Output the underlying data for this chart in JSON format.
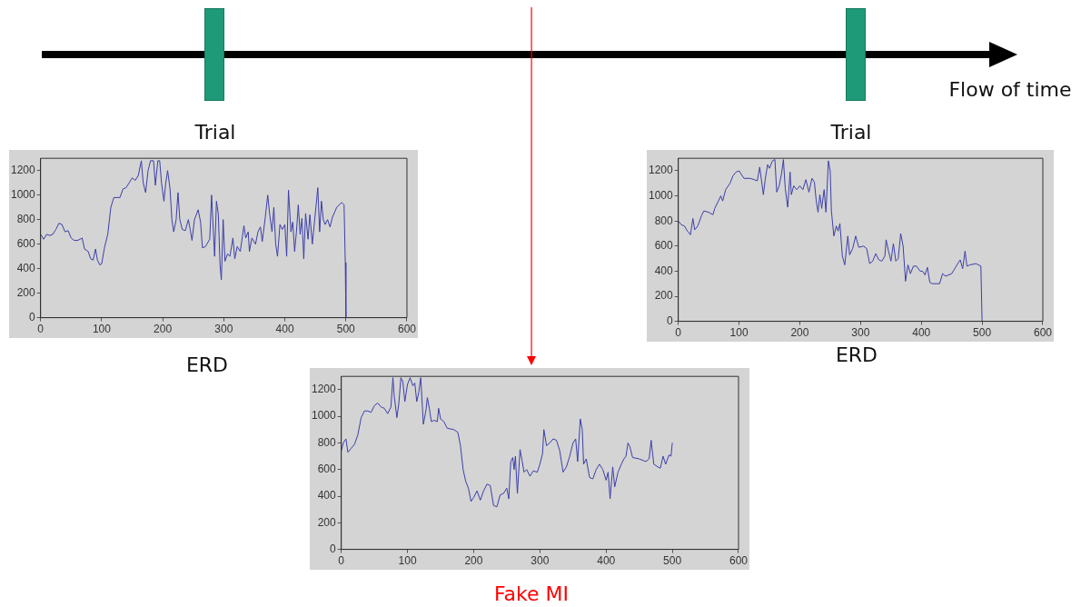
{
  "chart_data": [
    {
      "type": "other",
      "annotations": [
        "Trial",
        "Trial",
        "Flow of time"
      ]
    },
    {
      "type": "line",
      "xlabel": "ERD",
      "xlim": [
        0,
        600
      ],
      "xticks": [
        0,
        100,
        200,
        300,
        400,
        500,
        600
      ],
      "ylim": [
        0,
        1300
      ],
      "yticks": [
        0,
        200,
        400,
        600,
        800,
        1000,
        1200
      ],
      "grid": false,
      "legend": false,
      "x": [
        0,
        5,
        10,
        15,
        20,
        25,
        30,
        35,
        40,
        45,
        50,
        55,
        60,
        65,
        68,
        72,
        78,
        82,
        86,
        90,
        93,
        97,
        100,
        105,
        110,
        115,
        120,
        130,
        135,
        140,
        145,
        150,
        155,
        160,
        165,
        168,
        172,
        176,
        180,
        185,
        188,
        192,
        195,
        198,
        202,
        205,
        208,
        212,
        215,
        218,
        222,
        225,
        228,
        232,
        237,
        242,
        245,
        248,
        252,
        258,
        262,
        265,
        270,
        277,
        280,
        283,
        285,
        288,
        291,
        294,
        296,
        299,
        302,
        306,
        310,
        315,
        318,
        322,
        327,
        333,
        336,
        340,
        342,
        346,
        352,
        356,
        360,
        363,
        368,
        372,
        375,
        379,
        382,
        385,
        388,
        392,
        396,
        400,
        403,
        406,
        410,
        413,
        416,
        419,
        422,
        425,
        428,
        431,
        434,
        438,
        441,
        445,
        454,
        457,
        460,
        463,
        466,
        470,
        474,
        478,
        485,
        493,
        497,
        499,
        500
      ],
      "series": [
        {
          "color": "#3c3fa8",
          "values": [
            680,
            640,
            680,
            670,
            680,
            720,
            770,
            760,
            700,
            710,
            650,
            630,
            630,
            640,
            650,
            560,
            540,
            480,
            470,
            560,
            470,
            430,
            440,
            580,
            680,
            900,
            980,
            980,
            1050,
            1060,
            1100,
            1140,
            1120,
            1160,
            1280,
            1100,
            1020,
            1200,
            1280,
            1280,
            1080,
            1280,
            1280,
            1100,
            950,
            1100,
            1200,
            1050,
            800,
            700,
            800,
            1020,
            800,
            720,
            710,
            800,
            720,
            630,
            800,
            880,
            780,
            570,
            580,
            640,
            1000,
            700,
            500,
            950,
            850,
            420,
            310,
            800,
            460,
            520,
            500,
            650,
            480,
            580,
            540,
            750,
            650,
            700,
            540,
            650,
            600,
            700,
            740,
            620,
            820,
            1000,
            850,
            700,
            900,
            600,
            500,
            760,
            720,
            760,
            500,
            1040,
            700,
            780,
            540,
            700,
            920,
            680,
            810,
            480,
            850,
            640,
            840,
            600,
            1060,
            700,
            950,
            800,
            760,
            800,
            740,
            820,
            900,
            940,
            920,
            450,
            0
          ]
        }
      ]
    },
    {
      "type": "line",
      "xlabel": "ERD",
      "xlim": [
        0,
        600
      ],
      "xticks": [
        0,
        100,
        200,
        300,
        400,
        500,
        600
      ],
      "ylim": [
        0,
        1300
      ],
      "yticks": [
        0,
        200,
        400,
        600,
        800,
        1000,
        1200
      ],
      "grid": false,
      "legend": false,
      "x": [
        0,
        5,
        10,
        15,
        20,
        24,
        27,
        32,
        38,
        42,
        50,
        57,
        60,
        65,
        70,
        73,
        78,
        85,
        90,
        95,
        100,
        108,
        118,
        125,
        130,
        134,
        137,
        140,
        143,
        147,
        150,
        155,
        159,
        162,
        166,
        170,
        173,
        176,
        180,
        184,
        186,
        190,
        195,
        200,
        205,
        210,
        215,
        220,
        224,
        227,
        230,
        233,
        236,
        240,
        243,
        247,
        250,
        252,
        256,
        260,
        263,
        266,
        270,
        274,
        279,
        282,
        287,
        292,
        297,
        305,
        310,
        315,
        320,
        325,
        330,
        335,
        340,
        342,
        346,
        350,
        354,
        358,
        362,
        366,
        370,
        374,
        378,
        382,
        387,
        392,
        398,
        402,
        406,
        410,
        414,
        418,
        422,
        430,
        435,
        440,
        450,
        455,
        460,
        464,
        468,
        472,
        475,
        480,
        490,
        498,
        500
      ],
      "series": [
        {
          "color": "#3c3fa8",
          "values": [
            800,
            770,
            760,
            720,
            690,
            820,
            730,
            760,
            840,
            880,
            870,
            850,
            900,
            950,
            1000,
            960,
            1050,
            1100,
            1160,
            1190,
            1200,
            1140,
            1140,
            1130,
            1120,
            1230,
            1120,
            1010,
            1130,
            1250,
            1220,
            1280,
            1290,
            1030,
            1080,
            1180,
            1290,
            1060,
            910,
            1190,
            1010,
            1080,
            1050,
            1080,
            1050,
            1130,
            1030,
            1140,
            1110,
            960,
            870,
            1010,
            900,
            1050,
            870,
            1280,
            1200,
            880,
            680,
            760,
            720,
            780,
            520,
            450,
            680,
            530,
            580,
            680,
            590,
            600,
            580,
            460,
            480,
            540,
            490,
            480,
            520,
            650,
            560,
            480,
            620,
            480,
            500,
            700,
            600,
            320,
            450,
            380,
            440,
            440,
            400,
            400,
            370,
            430,
            310,
            300,
            300,
            300,
            380,
            360,
            380,
            420,
            460,
            490,
            420,
            560,
            440,
            450,
            460,
            440,
            0
          ]
        }
      ]
    },
    {
      "type": "line",
      "xlabel": "Fake MI",
      "xlim": [
        0,
        600
      ],
      "xticks": [
        0,
        100,
        200,
        300,
        400,
        500,
        600
      ],
      "ylim": [
        0,
        1300
      ],
      "yticks": [
        0,
        200,
        400,
        600,
        800,
        1000,
        1200
      ],
      "grid": false,
      "legend": false,
      "x": [
        0,
        3,
        7,
        10,
        15,
        20,
        25,
        30,
        35,
        40,
        45,
        50,
        55,
        60,
        65,
        70,
        75,
        78,
        80,
        84,
        87,
        90,
        93,
        96,
        100,
        104,
        108,
        111,
        114,
        117,
        120,
        124,
        128,
        130,
        133,
        136,
        140,
        145,
        147,
        150,
        155,
        160,
        170,
        176,
        180,
        184,
        188,
        192,
        196,
        200,
        205,
        210,
        215,
        220,
        225,
        230,
        235,
        240,
        245,
        250,
        253,
        256,
        259,
        261,
        263,
        266,
        270,
        273,
        276,
        280,
        285,
        290,
        296,
        300,
        304,
        306,
        310,
        315,
        320,
        325,
        330,
        335,
        340,
        345,
        350,
        354,
        357,
        361,
        364,
        366,
        370,
        375,
        380,
        385,
        390,
        395,
        400,
        403,
        406,
        410,
        413,
        418,
        423,
        427,
        430,
        433,
        436,
        440,
        450,
        460,
        465,
        468,
        472,
        478,
        482,
        486,
        490,
        495,
        498,
        500
      ],
      "series": [
        {
          "color": "#3c3fa8",
          "values": [
            740,
            800,
            830,
            730,
            760,
            790,
            860,
            990,
            1040,
            1040,
            1030,
            1080,
            1100,
            1070,
            1060,
            1020,
            1070,
            1290,
            1150,
            990,
            1100,
            1290,
            1260,
            1110,
            1240,
            1290,
            1230,
            1250,
            1110,
            1180,
            1290,
            940,
            1050,
            1140,
            1060,
            960,
            970,
            960,
            1060,
            980,
            960,
            910,
            900,
            880,
            780,
            600,
            510,
            460,
            360,
            390,
            440,
            370,
            440,
            490,
            480,
            330,
            320,
            410,
            420,
            460,
            380,
            660,
            690,
            600,
            700,
            420,
            750,
            670,
            580,
            600,
            550,
            590,
            580,
            640,
            720,
            900,
            780,
            800,
            830,
            820,
            740,
            580,
            620,
            700,
            800,
            830,
            660,
            980,
            900,
            640,
            680,
            540,
            530,
            600,
            640,
            600,
            520,
            580,
            380,
            620,
            470,
            580,
            640,
            680,
            700,
            800,
            770,
            690,
            680,
            660,
            680,
            820,
            640,
            620,
            610,
            700,
            640,
            710,
            700,
            800
          ]
        }
      ]
    }
  ]
}
